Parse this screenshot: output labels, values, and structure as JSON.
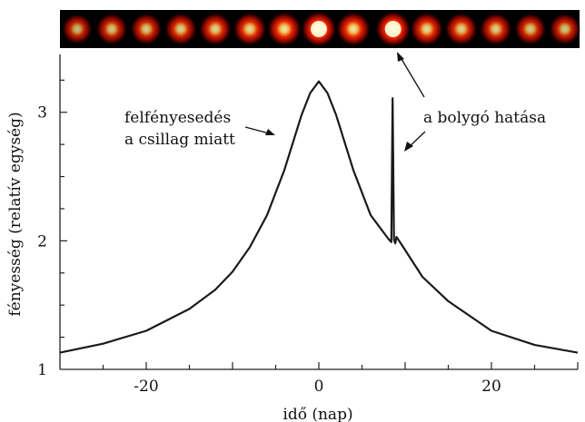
{
  "chart_data": {
    "type": "line",
    "xlabel": "idő (nap)",
    "ylabel": "fényesség (relatív egység)",
    "xlim": [
      -30,
      30
    ],
    "ylim": [
      1,
      3.45
    ],
    "x_ticks": [
      -20,
      0,
      20
    ],
    "y_ticks": [
      1,
      2,
      3
    ],
    "x_tick_labels": [
      "-20",
      "0",
      "20"
    ],
    "y_tick_labels": [
      "1",
      "2",
      "3"
    ],
    "grid": false,
    "series": [
      {
        "x": [
          -30,
          -25,
          -20,
          -15,
          -12,
          -10,
          -8,
          -6,
          -4,
          -2,
          -1,
          0,
          1,
          2,
          4,
          6,
          8,
          8.4,
          8.55,
          8.7,
          8.85,
          9.0,
          9.2,
          9.6,
          12,
          15,
          20,
          25,
          30
        ],
        "y": [
          1.13,
          1.2,
          1.3,
          1.47,
          1.62,
          1.76,
          1.95,
          2.2,
          2.55,
          2.98,
          3.15,
          3.24,
          3.15,
          2.98,
          2.55,
          2.2,
          2.02,
          1.99,
          3.11,
          2.01,
          1.98,
          2.03,
          2.01,
          1.97,
          1.72,
          1.53,
          1.3,
          1.19,
          1.13
        ]
      }
    ],
    "strip": {
      "blobs": [
        {
          "x": -28,
          "intensity": 0.45
        },
        {
          "x": -24,
          "intensity": 0.55
        },
        {
          "x": -20,
          "intensity": 0.6
        },
        {
          "x": -16,
          "intensity": 0.65
        },
        {
          "x": -12,
          "intensity": 0.7
        },
        {
          "x": -8,
          "intensity": 0.75
        },
        {
          "x": -4,
          "intensity": 0.85
        },
        {
          "x": 0,
          "intensity": 1.0
        },
        {
          "x": 4,
          "intensity": 0.85
        },
        {
          "x": 8.6,
          "intensity": 1.0
        },
        {
          "x": 12.5,
          "intensity": 0.75
        },
        {
          "x": 16.5,
          "intensity": 0.7
        },
        {
          "x": 20.5,
          "intensity": 0.65
        },
        {
          "x": 24.5,
          "intensity": 0.6
        },
        {
          "x": 28.5,
          "intensity": 0.55
        }
      ]
    },
    "annotations": [
      {
        "lines": [
          "felfényesedés",
          "a csillag miatt"
        ]
      },
      {
        "lines": [
          "a bolygó hatása"
        ]
      }
    ],
    "colors": {
      "line": "#1a1a1a",
      "strip_bg": "#000000",
      "blob_core": "#ffffc8",
      "blob_mid": "#ff2a00",
      "blob_edge": "#5a0000"
    }
  }
}
